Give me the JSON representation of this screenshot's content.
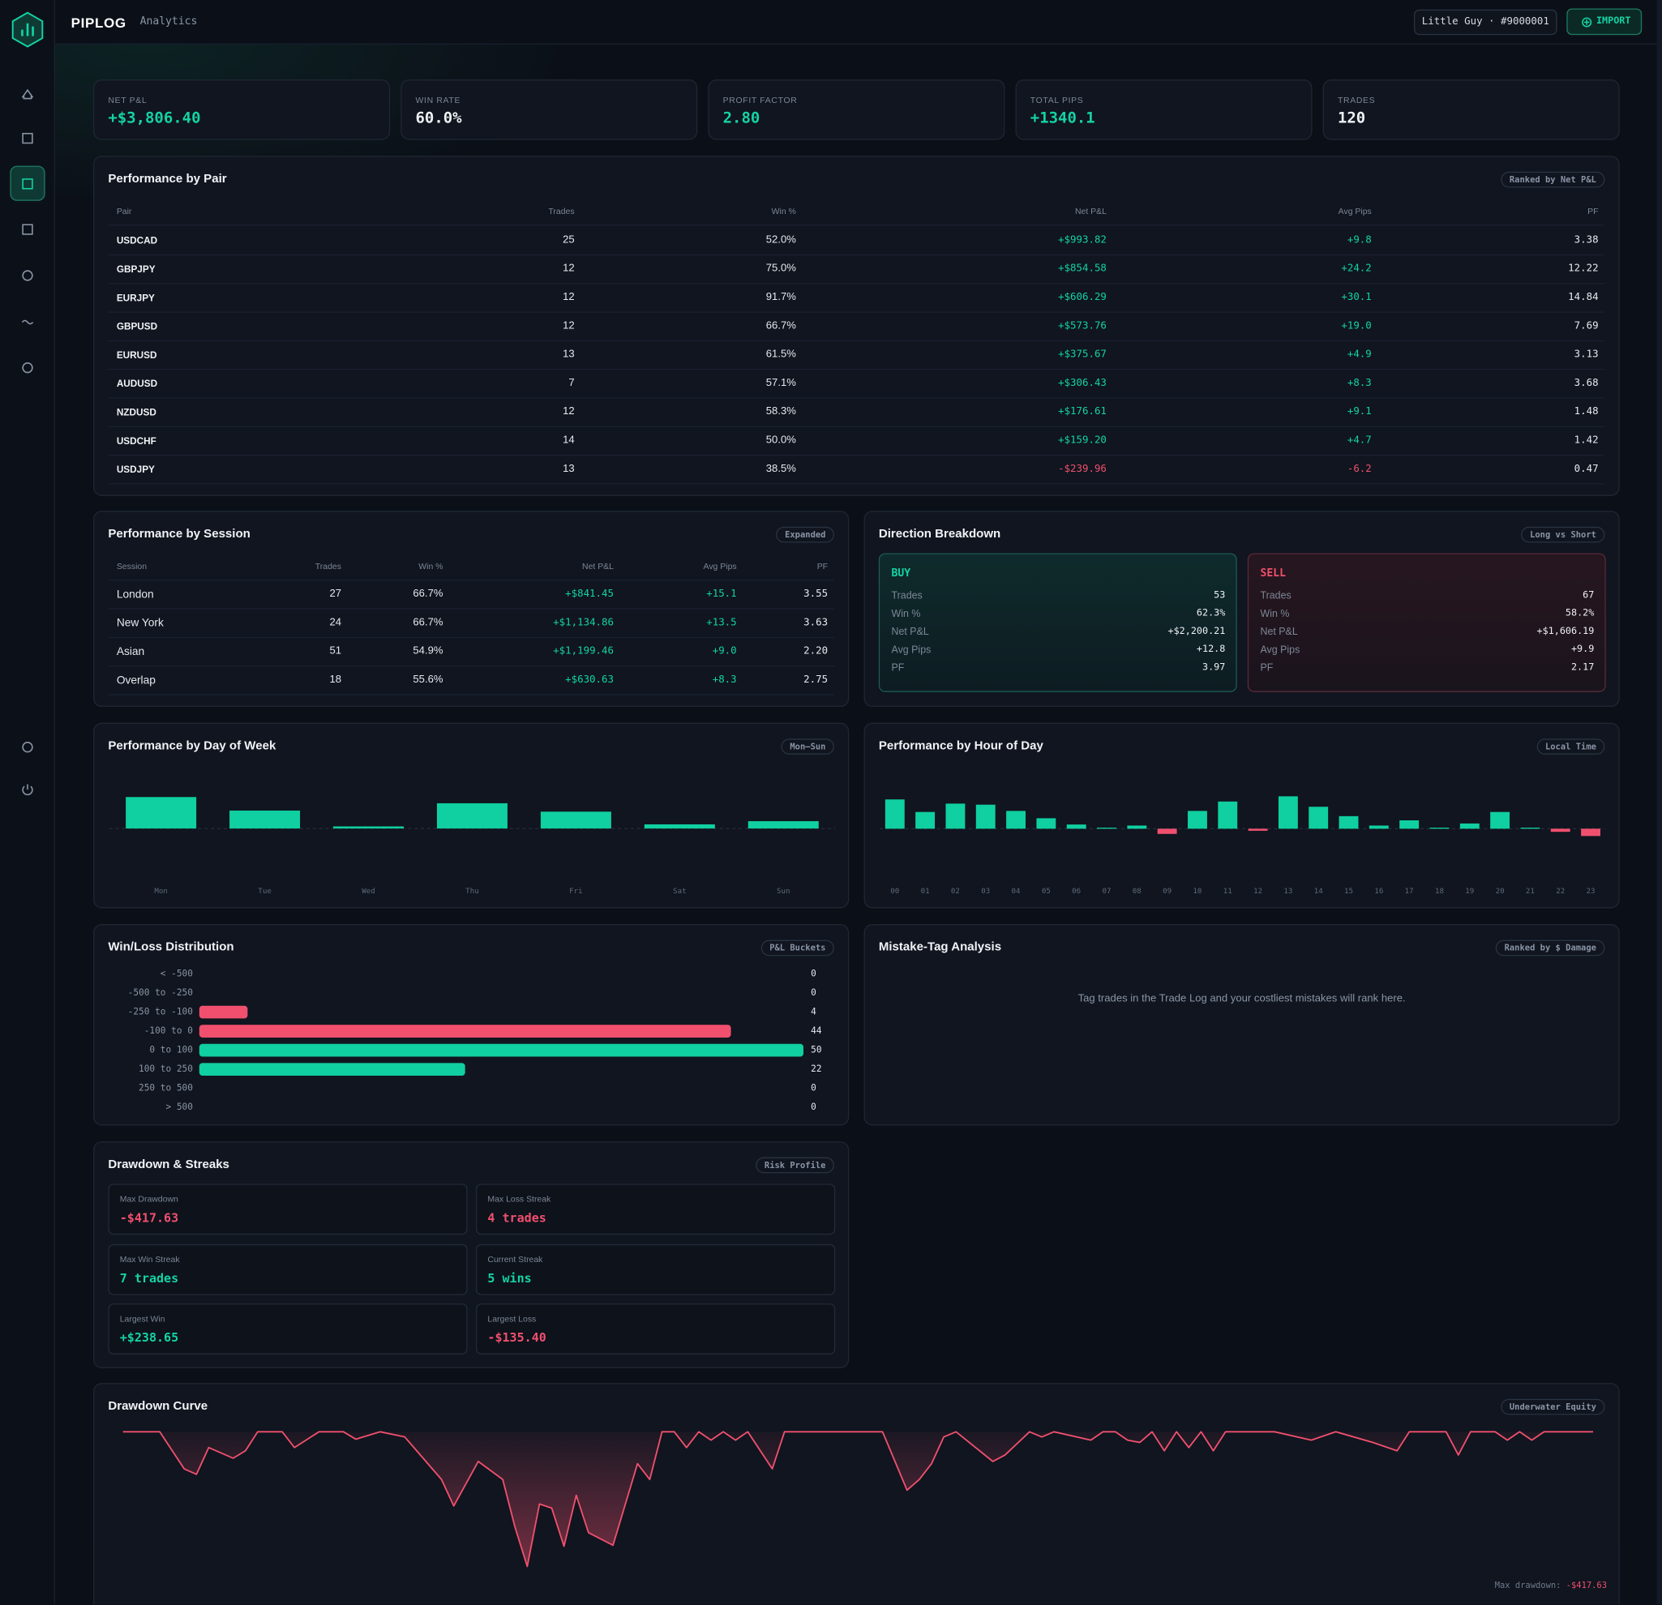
{
  "header": {
    "brand": "PIPLOG",
    "section": "Analytics",
    "user": "Little Guy · #9000001",
    "import_button": "IMPORT"
  },
  "kpis": [
    {
      "label": "NET P&L",
      "value": "+$3,806.40",
      "color": "#14d3a4"
    },
    {
      "label": "WIN RATE",
      "value": "60.0%",
      "color": "#eef1f5"
    },
    {
      "label": "PROFIT FACTOR",
      "value": "2.80",
      "color": "#14d3a4"
    },
    {
      "label": "TOTAL PIPS",
      "value": "+1340.1",
      "color": "#14d3a4"
    },
    {
      "label": "TRADES",
      "value": "120",
      "color": "#eef1f5"
    }
  ],
  "pair_table": {
    "title": "Performance by Pair",
    "badge": "Ranked by Net P&L",
    "columns": [
      "Pair",
      "Trades",
      "Win %",
      "Net P&L",
      "Avg Pips",
      "PF"
    ],
    "rows": [
      [
        "USDCAD",
        "25",
        "52.0%",
        "+$993.82",
        "+9.8",
        "3.38"
      ],
      [
        "GBPJPY",
        "12",
        "75.0%",
        "+$854.58",
        "+24.2",
        "12.22"
      ],
      [
        "EURJPY",
        "12",
        "91.7%",
        "+$606.29",
        "+30.1",
        "14.84"
      ],
      [
        "GBPUSD",
        "12",
        "66.7%",
        "+$573.76",
        "+19.0",
        "7.69"
      ],
      [
        "EURUSD",
        "13",
        "61.5%",
        "+$375.67",
        "+4.9",
        "3.13"
      ],
      [
        "AUDUSD",
        "7",
        "57.1%",
        "+$306.43",
        "+8.3",
        "3.68"
      ],
      [
        "NZDUSD",
        "12",
        "58.3%",
        "+$176.61",
        "+9.1",
        "1.48"
      ],
      [
        "USDCHF",
        "14",
        "50.0%",
        "+$159.20",
        "+4.7",
        "1.42"
      ],
      [
        "USDJPY",
        "13",
        "38.5%",
        "-$239.96",
        "-6.2",
        "0.47"
      ]
    ]
  },
  "session_table": {
    "title": "Performance by Session",
    "badge": "Expanded",
    "columns": [
      "Session",
      "Trades",
      "Win %",
      "Net P&L",
      "Avg Pips",
      "PF"
    ],
    "rows": [
      [
        "London",
        "27",
        "66.7%",
        "+$841.45",
        "+15.1",
        "3.55"
      ],
      [
        "New York",
        "24",
        "66.7%",
        "+$1,134.86",
        "+13.5",
        "3.63"
      ],
      [
        "Asian",
        "51",
        "54.9%",
        "+$1,199.46",
        "+9.0",
        "2.20"
      ],
      [
        "Overlap",
        "18",
        "55.6%",
        "+$630.63",
        "+8.3",
        "2.75"
      ]
    ]
  },
  "direction": {
    "title": "Direction Breakdown",
    "badge": "Long vs Short",
    "sides": [
      {
        "name": "BUY",
        "color": "#14d3a4",
        "rows": [
          [
            "Trades",
            "53"
          ],
          [
            "Win %",
            "62.3%"
          ],
          [
            "Net P&L",
            "+$2,200.21"
          ],
          [
            "Avg Pips",
            "+12.8"
          ],
          [
            "PF",
            "3.97"
          ]
        ]
      },
      {
        "name": "SELL",
        "color": "#f0506e",
        "rows": [
          [
            "Trades",
            "67"
          ],
          [
            "Win %",
            "58.2%"
          ],
          [
            "Net P&L",
            "+$1,606.19"
          ],
          [
            "Avg Pips",
            "+9.9"
          ],
          [
            "PF",
            "2.17"
          ]
        ]
      }
    ]
  },
  "chart_data": [
    {
      "type": "bar",
      "title": "Performance by Day of Week",
      "badge": "Mon–Sun",
      "categories": [
        "Mon",
        "Tue",
        "Wed",
        "Thu",
        "Fri",
        "Sat",
        "Sun"
      ],
      "values": [
        1140,
        650,
        75,
        915,
        610,
        150,
        265
      ],
      "color": "#10cfa0",
      "ylim": [
        -1700,
        1950
      ]
    },
    {
      "type": "bar",
      "title": "Performance by Hour of Day",
      "badge": "Local Time",
      "categories": [
        "00",
        "01",
        "02",
        "03",
        "04",
        "05",
        "06",
        "07",
        "08",
        "09",
        "10",
        "11",
        "12",
        "13",
        "14",
        "15",
        "16",
        "17",
        "18",
        "19",
        "20",
        "21",
        "22",
        "23"
      ],
      "values": [
        420,
        240,
        360,
        345,
        255,
        150,
        60,
        15,
        45,
        -75,
        255,
        390,
        -30,
        465,
        315,
        180,
        45,
        120,
        15,
        75,
        240,
        15,
        -45,
        -105
      ],
      "color": "#10cfa0",
      "negative_color": "#f0506e",
      "ylim": [
        -670,
        775
      ]
    },
    {
      "type": "hbar",
      "title": "Win/Loss Distribution",
      "badge": "P&L Buckets",
      "categories": [
        "< -500",
        "-500 to -250",
        "-250 to -100",
        "-100 to 0",
        "0 to 100",
        "100 to 250",
        "250 to 500",
        "> 500"
      ],
      "values": [
        0,
        0,
        4,
        44,
        50,
        22,
        0,
        0
      ],
      "colors": [
        "#f0506e",
        "#f0506e",
        "#f0506e",
        "#f0506e",
        "#10cfa0",
        "#10cfa0",
        "#10cfa0",
        "#10cfa0"
      ],
      "xlim": [
        0,
        50
      ]
    },
    {
      "type": "area",
      "title": "Drawdown Curve",
      "badge": "Underwater Equity",
      "x": [
        0,
        3,
        5,
        6,
        7,
        9,
        10,
        11,
        13,
        14,
        16,
        18,
        19,
        21,
        23,
        26,
        27,
        29,
        31,
        32,
        33,
        34,
        35,
        36,
        37,
        38,
        40,
        42,
        43,
        44,
        45,
        46,
        47,
        48,
        49,
        50,
        51,
        53,
        54,
        62,
        64,
        65,
        66,
        67,
        68,
        71,
        72,
        74,
        75,
        76,
        79,
        80,
        81,
        82,
        83,
        84,
        85,
        86,
        87,
        88,
        89,
        90,
        94,
        97,
        99,
        102,
        104,
        105,
        108,
        109,
        110,
        112,
        113,
        114,
        115,
        116,
        118,
        120
      ],
      "values": [
        0,
        0,
        -115,
        -132,
        -49,
        -82,
        -59,
        0,
        0,
        -49,
        0,
        0,
        -23,
        0,
        -16,
        -148,
        -230,
        -92,
        -148,
        -296,
        -417.63,
        -224,
        -237,
        -355,
        -197,
        -313,
        -352,
        -99,
        -148,
        0,
        0,
        -49,
        0,
        -26,
        0,
        -26,
        0,
        -115,
        0,
        0,
        -181,
        -148,
        -99,
        -16,
        0,
        -92,
        -72,
        0,
        -16,
        0,
        -26,
        0,
        0,
        -26,
        -33,
        0,
        -59,
        0,
        -49,
        0,
        -59,
        0,
        0,
        -26,
        0,
        -33,
        -59,
        0,
        0,
        -72,
        0,
        0,
        -26,
        0,
        -26,
        0,
        0,
        0
      ],
      "color": "#f0506e",
      "xlim": [
        0,
        120
      ],
      "ylim": [
        -430,
        0
      ],
      "annotation_label": "Max drawdown:",
      "annotation_value": "-$417.63"
    }
  ],
  "mistake_tags": {
    "title": "Mistake-Tag Analysis",
    "badge": "Ranked by $ Damage",
    "empty_message": "Tag trades in the Trade Log and your costliest mistakes will rank here."
  },
  "streaks": {
    "title": "Drawdown & Streaks",
    "badge": "Risk Profile",
    "cards": [
      {
        "label": "Max Drawdown",
        "value": "-$417.63",
        "color": "#f0506e"
      },
      {
        "label": "Max Loss Streak",
        "value": "4 trades",
        "color": "#f0506e"
      },
      {
        "label": "Max Win Streak",
        "value": "7 trades",
        "color": "#14d3a4"
      },
      {
        "label": "Current Streak",
        "value": "5 wins",
        "color": "#14d3a4"
      },
      {
        "label": "Largest Win",
        "value": "+$238.65",
        "color": "#14d3a4"
      },
      {
        "label": "Largest Loss",
        "value": "-$135.40",
        "color": "#f0506e"
      }
    ]
  }
}
